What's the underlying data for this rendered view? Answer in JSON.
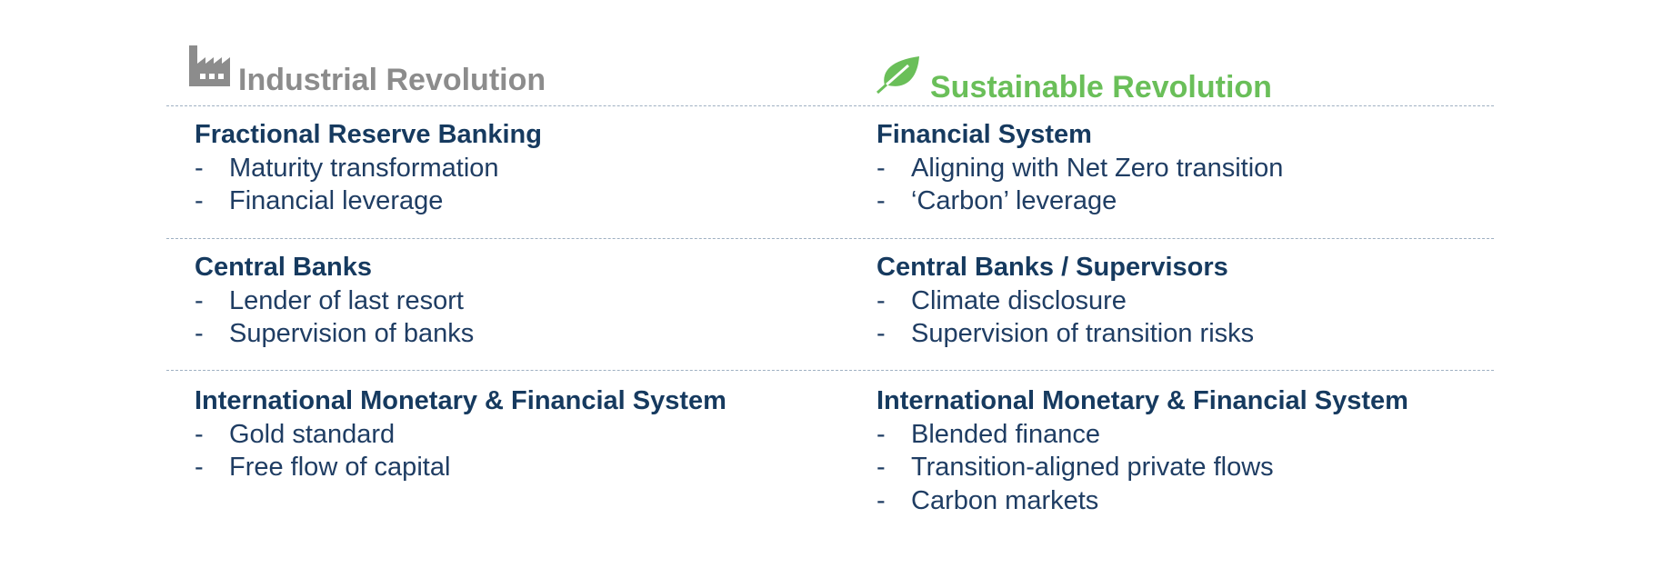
{
  "header": {
    "left_title": "Industrial Revolution",
    "left_icon": "factory-icon",
    "right_title": "Sustainable Revolution",
    "right_icon": "leaf-icon",
    "left_color": "#8c8c8c",
    "right_color": "#6abf59"
  },
  "left": {
    "sections": [
      {
        "title": "Fractional Reserve Banking",
        "items": [
          "Maturity transformation",
          "Financial leverage"
        ]
      },
      {
        "title": "Central Banks",
        "items": [
          "Lender of last resort",
          "Supervision of banks"
        ]
      },
      {
        "title": "International Monetary & Financial System",
        "items": [
          "Gold standard",
          "Free flow of capital"
        ]
      }
    ]
  },
  "right": {
    "sections": [
      {
        "title": "Financial System",
        "items": [
          "Aligning with Net Zero transition",
          "‘Carbon’ leverage"
        ]
      },
      {
        "title": "Central Banks / Supervisors",
        "items": [
          "Climate disclosure",
          "Supervision of transition risks"
        ]
      },
      {
        "title": "International Monetary & Financial System",
        "items": [
          "Blended finance",
          "Transition-aligned private flows",
          "Carbon markets"
        ]
      }
    ]
  },
  "bullet": "-"
}
